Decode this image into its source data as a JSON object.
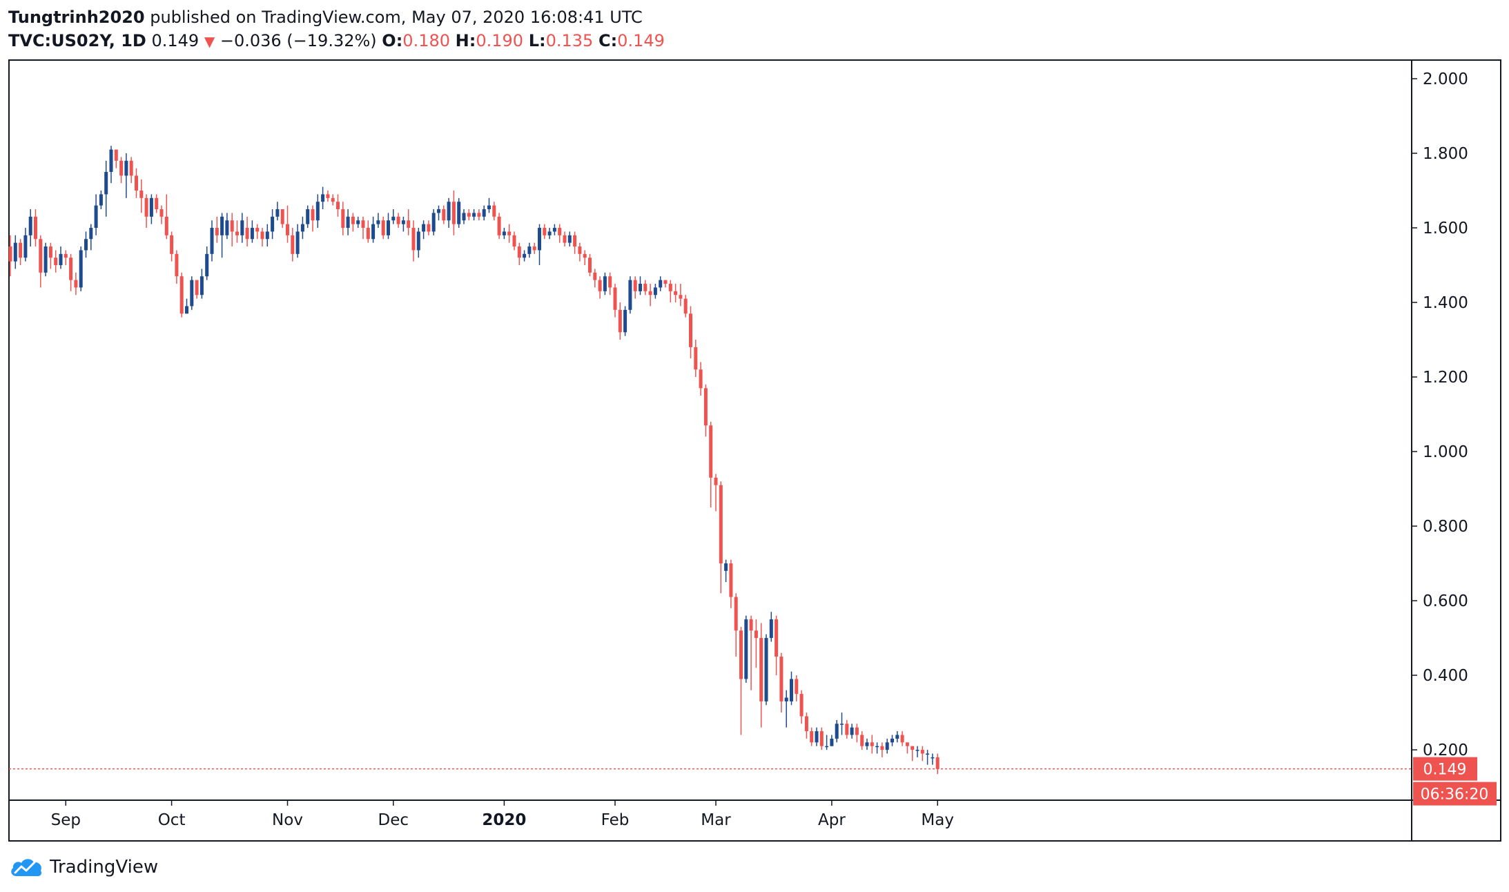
{
  "header": {
    "author": "Tungtrinh2020",
    "published_text": "published on TradingView.com, May 07, 2020 16:08:41 UTC",
    "symbol": "TVC:US02Y, 1D",
    "last": "0.149",
    "direction_icon": "triangle-down-icon",
    "change": "−0.036 (−19.32%)",
    "open_label": "O:",
    "open": "0.180",
    "high_label": "H:",
    "high": "0.190",
    "low_label": "L:",
    "low": "0.135",
    "close_label": "C:",
    "close": "0.149"
  },
  "price_badge": "0.149",
  "countdown_badge": "06:36:20",
  "brand": {
    "name": "TradingView",
    "icon": "tradingview-cloud-icon"
  },
  "colors": {
    "up": "#1e4a8e",
    "down": "#ef5350",
    "axis": "#131722",
    "text": "#131722"
  },
  "chart_data": {
    "type": "candlestick",
    "ylim": [
      0.065,
      2.05
    ],
    "yticks": [
      "2.000",
      "1.800",
      "1.600",
      "1.400",
      "1.200",
      "1.000",
      "0.800",
      "0.600",
      "0.400",
      "0.200"
    ],
    "xticks": [
      {
        "label": "Sep",
        "index": 11,
        "bold": false
      },
      {
        "label": "Oct",
        "index": 32,
        "bold": false
      },
      {
        "label": "Nov",
        "index": 55,
        "bold": false
      },
      {
        "label": "Dec",
        "index": 76,
        "bold": false
      },
      {
        "label": "2020",
        "index": 98,
        "bold": true
      },
      {
        "label": "Feb",
        "index": 120,
        "bold": false
      },
      {
        "label": "Mar",
        "index": 140,
        "bold": false
      },
      {
        "label": "Apr",
        "index": 163,
        "bold": false
      },
      {
        "label": "May",
        "index": 184,
        "bold": false
      }
    ],
    "last_price": 0.149,
    "candles": [
      [
        1.55,
        1.51,
        1.58,
        1.47
      ],
      [
        1.51,
        1.56,
        1.58,
        1.49
      ],
      [
        1.56,
        1.52,
        1.57,
        1.5
      ],
      [
        1.52,
        1.58,
        1.6,
        1.51
      ],
      [
        1.58,
        1.63,
        1.65,
        1.55
      ],
      [
        1.63,
        1.57,
        1.65,
        1.55
      ],
      [
        1.57,
        1.48,
        1.58,
        1.44
      ],
      [
        1.48,
        1.55,
        1.56,
        1.47
      ],
      [
        1.55,
        1.52,
        1.56,
        1.49
      ],
      [
        1.52,
        1.5,
        1.54,
        1.48
      ],
      [
        1.5,
        1.53,
        1.55,
        1.49
      ],
      [
        1.53,
        1.52,
        1.54,
        1.5
      ],
      [
        1.52,
        1.46,
        1.53,
        1.43
      ],
      [
        1.46,
        1.44,
        1.48,
        1.42
      ],
      [
        1.44,
        1.54,
        1.55,
        1.43
      ],
      [
        1.54,
        1.57,
        1.59,
        1.52
      ],
      [
        1.57,
        1.6,
        1.61,
        1.54
      ],
      [
        1.6,
        1.66,
        1.69,
        1.58
      ],
      [
        1.66,
        1.69,
        1.7,
        1.65
      ],
      [
        1.69,
        1.75,
        1.78,
        1.63
      ],
      [
        1.75,
        1.81,
        1.82,
        1.72
      ],
      [
        1.81,
        1.78,
        1.81,
        1.76
      ],
      [
        1.78,
        1.74,
        1.79,
        1.72
      ],
      [
        1.74,
        1.78,
        1.8,
        1.68
      ],
      [
        1.78,
        1.74,
        1.79,
        1.72
      ],
      [
        1.74,
        1.7,
        1.76,
        1.68
      ],
      [
        1.7,
        1.68,
        1.73,
        1.64
      ],
      [
        1.68,
        1.63,
        1.69,
        1.6
      ],
      [
        1.63,
        1.68,
        1.69,
        1.61
      ],
      [
        1.68,
        1.65,
        1.69,
        1.64
      ],
      [
        1.65,
        1.63,
        1.66,
        1.61
      ],
      [
        1.63,
        1.58,
        1.69,
        1.57
      ],
      [
        1.58,
        1.53,
        1.59,
        1.51
      ],
      [
        1.53,
        1.47,
        1.54,
        1.45
      ],
      [
        1.47,
        1.37,
        1.48,
        1.36
      ],
      [
        1.37,
        1.39,
        1.41,
        1.37
      ],
      [
        1.39,
        1.46,
        1.47,
        1.38
      ],
      [
        1.46,
        1.42,
        1.46,
        1.41
      ],
      [
        1.42,
        1.47,
        1.49,
        1.41
      ],
      [
        1.47,
        1.53,
        1.55,
        1.46
      ],
      [
        1.53,
        1.6,
        1.62,
        1.51
      ],
      [
        1.6,
        1.58,
        1.63,
        1.56
      ],
      [
        1.58,
        1.63,
        1.64,
        1.52
      ],
      [
        1.58,
        1.62,
        1.64,
        1.57
      ],
      [
        1.62,
        1.59,
        1.64,
        1.55
      ],
      [
        1.59,
        1.58,
        1.62,
        1.56
      ],
      [
        1.58,
        1.62,
        1.64,
        1.56
      ],
      [
        1.6,
        1.57,
        1.63,
        1.55
      ],
      [
        1.57,
        1.6,
        1.62,
        1.56
      ],
      [
        1.6,
        1.59,
        1.61,
        1.57
      ],
      [
        1.59,
        1.57,
        1.6,
        1.55
      ],
      [
        1.57,
        1.59,
        1.61,
        1.55
      ],
      [
        1.59,
        1.63,
        1.65,
        1.57
      ],
      [
        1.63,
        1.65,
        1.67,
        1.62
      ],
      [
        1.65,
        1.61,
        1.65,
        1.6
      ],
      [
        1.61,
        1.58,
        1.66,
        1.56
      ],
      [
        1.58,
        1.53,
        1.6,
        1.51
      ],
      [
        1.53,
        1.59,
        1.61,
        1.52
      ],
      [
        1.59,
        1.61,
        1.63,
        1.57
      ],
      [
        1.61,
        1.65,
        1.66,
        1.6
      ],
      [
        1.65,
        1.62,
        1.66,
        1.59
      ],
      [
        1.62,
        1.67,
        1.69,
        1.6
      ],
      [
        1.67,
        1.69,
        1.71,
        1.65
      ],
      [
        1.69,
        1.68,
        1.7,
        1.67
      ],
      [
        1.68,
        1.67,
        1.69,
        1.66
      ],
      [
        1.67,
        1.65,
        1.69,
        1.63
      ],
      [
        1.65,
        1.6,
        1.67,
        1.58
      ],
      [
        1.6,
        1.63,
        1.65,
        1.58
      ],
      [
        1.63,
        1.61,
        1.64,
        1.59
      ],
      [
        1.61,
        1.62,
        1.63,
        1.6
      ],
      [
        1.62,
        1.6,
        1.63,
        1.57
      ],
      [
        1.6,
        1.57,
        1.62,
        1.56
      ],
      [
        1.57,
        1.61,
        1.63,
        1.56
      ],
      [
        1.61,
        1.62,
        1.64,
        1.6
      ],
      [
        1.62,
        1.58,
        1.63,
        1.57
      ],
      [
        1.58,
        1.62,
        1.64,
        1.57
      ],
      [
        1.62,
        1.63,
        1.65,
        1.61
      ],
      [
        1.63,
        1.61,
        1.64,
        1.6
      ],
      [
        1.61,
        1.62,
        1.63,
        1.59
      ],
      [
        1.62,
        1.6,
        1.65,
        1.58
      ],
      [
        1.6,
        1.54,
        1.62,
        1.51
      ],
      [
        1.54,
        1.59,
        1.6,
        1.52
      ],
      [
        1.59,
        1.61,
        1.62,
        1.57
      ],
      [
        1.61,
        1.59,
        1.62,
        1.58
      ],
      [
        1.59,
        1.64,
        1.65,
        1.58
      ],
      [
        1.64,
        1.65,
        1.66,
        1.62
      ],
      [
        1.65,
        1.62,
        1.66,
        1.61
      ],
      [
        1.62,
        1.67,
        1.68,
        1.6
      ],
      [
        1.67,
        1.61,
        1.7,
        1.58
      ],
      [
        1.61,
        1.67,
        1.68,
        1.6
      ],
      [
        1.62,
        1.64,
        1.65,
        1.61
      ],
      [
        1.64,
        1.63,
        1.65,
        1.62
      ],
      [
        1.63,
        1.64,
        1.65,
        1.62
      ],
      [
        1.64,
        1.63,
        1.65,
        1.62
      ],
      [
        1.63,
        1.65,
        1.66,
        1.62
      ],
      [
        1.65,
        1.66,
        1.68,
        1.64
      ],
      [
        1.66,
        1.63,
        1.67,
        1.62
      ],
      [
        1.63,
        1.58,
        1.64,
        1.57
      ],
      [
        1.58,
        1.59,
        1.6,
        1.57
      ],
      [
        1.59,
        1.58,
        1.61,
        1.56
      ],
      [
        1.58,
        1.55,
        1.59,
        1.54
      ],
      [
        1.55,
        1.52,
        1.56,
        1.5
      ],
      [
        1.52,
        1.53,
        1.54,
        1.51
      ],
      [
        1.53,
        1.55,
        1.56,
        1.52
      ],
      [
        1.55,
        1.54,
        1.56,
        1.53
      ],
      [
        1.54,
        1.6,
        1.61,
        1.5
      ],
      [
        1.6,
        1.58,
        1.61,
        1.57
      ],
      [
        1.58,
        1.59,
        1.6,
        1.57
      ],
      [
        1.59,
        1.6,
        1.61,
        1.58
      ],
      [
        1.6,
        1.58,
        1.61,
        1.56
      ],
      [
        1.58,
        1.56,
        1.59,
        1.55
      ],
      [
        1.56,
        1.58,
        1.59,
        1.55
      ],
      [
        1.58,
        1.55,
        1.59,
        1.53
      ],
      [
        1.55,
        1.53,
        1.56,
        1.51
      ],
      [
        1.53,
        1.52,
        1.54,
        1.5
      ],
      [
        1.52,
        1.48,
        1.53,
        1.47
      ],
      [
        1.48,
        1.46,
        1.49,
        1.44
      ],
      [
        1.46,
        1.43,
        1.47,
        1.41
      ],
      [
        1.43,
        1.47,
        1.48,
        1.42
      ],
      [
        1.47,
        1.44,
        1.48,
        1.42
      ],
      [
        1.44,
        1.38,
        1.45,
        1.36
      ],
      [
        1.38,
        1.32,
        1.4,
        1.3
      ],
      [
        1.32,
        1.38,
        1.39,
        1.31
      ],
      [
        1.38,
        1.46,
        1.47,
        1.37
      ],
      [
        1.46,
        1.43,
        1.47,
        1.41
      ],
      [
        1.43,
        1.45,
        1.47,
        1.42
      ],
      [
        1.45,
        1.43,
        1.46,
        1.42
      ],
      [
        1.43,
        1.42,
        1.45,
        1.39
      ],
      [
        1.42,
        1.44,
        1.45,
        1.41
      ],
      [
        1.44,
        1.46,
        1.47,
        1.43
      ],
      [
        1.46,
        1.45,
        1.46,
        1.44
      ],
      [
        1.45,
        1.43,
        1.46,
        1.4
      ],
      [
        1.43,
        1.42,
        1.45,
        1.4
      ],
      [
        1.42,
        1.41,
        1.45,
        1.39
      ],
      [
        1.41,
        1.37,
        1.42,
        1.36
      ],
      [
        1.37,
        1.28,
        1.39,
        1.25
      ],
      [
        1.28,
        1.22,
        1.3,
        1.2
      ],
      [
        1.22,
        1.17,
        1.24,
        1.15
      ],
      [
        1.17,
        1.07,
        1.18,
        1.04
      ],
      [
        1.07,
        0.93,
        1.08,
        0.85
      ],
      [
        0.93,
        0.91,
        0.94,
        0.84
      ],
      [
        0.91,
        0.7,
        0.92,
        0.62
      ],
      [
        0.68,
        0.7,
        0.71,
        0.65
      ],
      [
        0.7,
        0.61,
        0.71,
        0.58
      ],
      [
        0.61,
        0.52,
        0.62,
        0.45
      ],
      [
        0.52,
        0.39,
        0.53,
        0.24
      ],
      [
        0.39,
        0.55,
        0.56,
        0.38
      ],
      [
        0.55,
        0.52,
        0.56,
        0.36
      ],
      [
        0.52,
        0.5,
        0.55,
        0.42
      ],
      [
        0.5,
        0.33,
        0.54,
        0.26
      ],
      [
        0.33,
        0.5,
        0.51,
        0.32
      ],
      [
        0.5,
        0.55,
        0.57,
        0.49
      ],
      [
        0.55,
        0.45,
        0.56,
        0.4
      ],
      [
        0.45,
        0.33,
        0.46,
        0.3
      ],
      [
        0.33,
        0.34,
        0.36,
        0.26
      ],
      [
        0.33,
        0.39,
        0.41,
        0.32
      ],
      [
        0.39,
        0.35,
        0.4,
        0.33
      ],
      [
        0.35,
        0.29,
        0.36,
        0.27
      ],
      [
        0.29,
        0.25,
        0.3,
        0.23
      ],
      [
        0.25,
        0.22,
        0.26,
        0.21
      ],
      [
        0.22,
        0.25,
        0.26,
        0.21
      ],
      [
        0.25,
        0.21,
        0.26,
        0.2
      ],
      [
        0.21,
        0.21,
        0.24,
        0.2
      ],
      [
        0.21,
        0.23,
        0.24,
        0.21
      ],
      [
        0.23,
        0.27,
        0.28,
        0.22
      ],
      [
        0.27,
        0.27,
        0.3,
        0.24
      ],
      [
        0.27,
        0.24,
        0.28,
        0.23
      ],
      [
        0.24,
        0.26,
        0.27,
        0.23
      ],
      [
        0.26,
        0.24,
        0.27,
        0.22
      ],
      [
        0.24,
        0.21,
        0.25,
        0.2
      ],
      [
        0.21,
        0.22,
        0.23,
        0.2
      ],
      [
        0.22,
        0.21,
        0.24,
        0.19
      ],
      [
        0.21,
        0.21,
        0.22,
        0.19
      ],
      [
        0.21,
        0.2,
        0.22,
        0.18
      ],
      [
        0.2,
        0.22,
        0.23,
        0.19
      ],
      [
        0.22,
        0.23,
        0.24,
        0.21
      ],
      [
        0.23,
        0.24,
        0.25,
        0.22
      ],
      [
        0.24,
        0.22,
        0.25,
        0.21
      ],
      [
        0.22,
        0.21,
        0.22,
        0.19
      ],
      [
        0.21,
        0.2,
        0.21,
        0.17
      ],
      [
        0.2,
        0.2,
        0.21,
        0.18
      ],
      [
        0.2,
        0.19,
        0.21,
        0.17
      ],
      [
        0.19,
        0.19,
        0.2,
        0.16
      ],
      [
        0.18,
        0.18,
        0.19,
        0.16
      ],
      [
        0.18,
        0.149,
        0.19,
        0.135
      ]
    ]
  }
}
